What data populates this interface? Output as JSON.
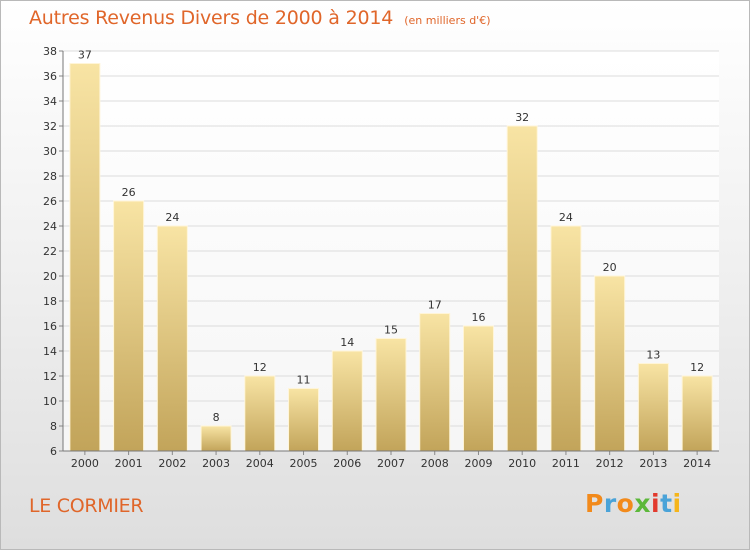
{
  "header": {
    "title": "Autres Revenus Divers de 2000 à 2014",
    "subtitle": "(en milliers d'€)"
  },
  "footer": {
    "commune": "LE CORMIER"
  },
  "logo": {
    "text": "Proxiti",
    "letters": [
      "P",
      "r",
      "o",
      "x",
      "i",
      "t",
      "i"
    ],
    "letter_colors": [
      "#f28a1b",
      "#4aa3d8",
      "#f28a1b",
      "#5cb83a",
      "#e23a2e",
      "#4aa3d8",
      "#f5b51a"
    ]
  },
  "colors": {
    "title": "#e0662a",
    "bar_light": "#f8e4a4",
    "bar_dark": "#c2a45a",
    "grid": "#dcdcdc",
    "axis": "#333333"
  },
  "chart_data": {
    "type": "bar",
    "categories": [
      "2000",
      "2001",
      "2002",
      "2003",
      "2004",
      "2005",
      "2006",
      "2007",
      "2008",
      "2009",
      "2010",
      "2011",
      "2012",
      "2013",
      "2014"
    ],
    "values": [
      37,
      26,
      24,
      8,
      12,
      11,
      14,
      15,
      17,
      16,
      32,
      24,
      20,
      13,
      12
    ],
    "data_labels": [
      "37",
      "26",
      "24",
      "8",
      "12",
      "11",
      "14",
      "15",
      "17",
      "16",
      "32",
      "24",
      "20",
      "13",
      "12"
    ],
    "ylim": [
      6,
      38
    ],
    "yticks": [
      6,
      8,
      10,
      12,
      14,
      16,
      18,
      20,
      22,
      24,
      26,
      28,
      30,
      32,
      34,
      36,
      38
    ],
    "grid": true,
    "legend": "none"
  }
}
